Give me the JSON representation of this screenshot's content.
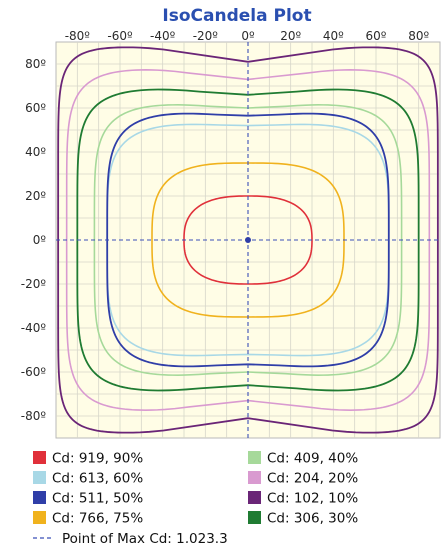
{
  "chart_data": {
    "type": "contour",
    "title": "IsoCandela Plot",
    "x_ticks": [
      "-80º",
      "-60º",
      "-40º",
      "-20º",
      "0º",
      "20º",
      "40º",
      "60º",
      "80º"
    ],
    "y_ticks": [
      "80º",
      "60º",
      "40º",
      "20º",
      "0º",
      "-20º",
      "-40º",
      "-60º",
      "-80º"
    ],
    "x_tick_values": [
      -80,
      -60,
      -40,
      -20,
      0,
      20,
      40,
      60,
      80
    ],
    "y_tick_values": [
      80,
      60,
      40,
      20,
      0,
      -20,
      -40,
      -60,
      -80
    ],
    "xlim": [
      -90,
      90
    ],
    "ylim": [
      -90,
      90
    ],
    "grid": true,
    "background_color": "#fffde6",
    "max_point": {
      "x": 0,
      "y": 0,
      "label": "Point of Max Cd: 1,023.3"
    },
    "series": [
      {
        "label": "Cd: 919, 90%",
        "color": "#e0303a",
        "hx": 30,
        "hy": 20,
        "exponent": 2.6,
        "concave": 0,
        "width": 1.6
      },
      {
        "label": "Cd: 766, 75%",
        "color": "#f0b21d",
        "hx": 45,
        "hy": 35,
        "exponent": 3.2,
        "concave": 0,
        "width": 1.6
      },
      {
        "label": "Cd: 613, 60%",
        "color": "#a8d8e6",
        "hx": 66,
        "hy": 53,
        "exponent": 4.5,
        "concave": 1,
        "width": 1.6
      },
      {
        "label": "Cd: 511, 50%",
        "color": "#2f3ea8",
        "hx": 66,
        "hy": 58,
        "exponent": 4.8,
        "concave": 1.5,
        "width": 1.8
      },
      {
        "label": "Cd: 409, 40%",
        "color": "#a6d99a",
        "hx": 72,
        "hy": 62,
        "exponent": 5.2,
        "concave": 2,
        "width": 1.6
      },
      {
        "label": "Cd: 306, 30%",
        "color": "#1f7b32",
        "hx": 80,
        "hy": 69,
        "exponent": 5.8,
        "concave": 3,
        "width": 1.8
      },
      {
        "label": "Cd: 204, 20%",
        "color": "#d99ad0",
        "hx": 85,
        "hy": 78,
        "exponent": 6.5,
        "concave": 5,
        "width": 1.6
      },
      {
        "label": "Cd: 102, 10%",
        "color": "#6a2577",
        "hx": 89,
        "hy": 88,
        "exponent": 9,
        "concave": 7,
        "width": 1.8
      }
    ],
    "legend_order": [
      0,
      4,
      2,
      6,
      3,
      7,
      1,
      5
    ]
  }
}
